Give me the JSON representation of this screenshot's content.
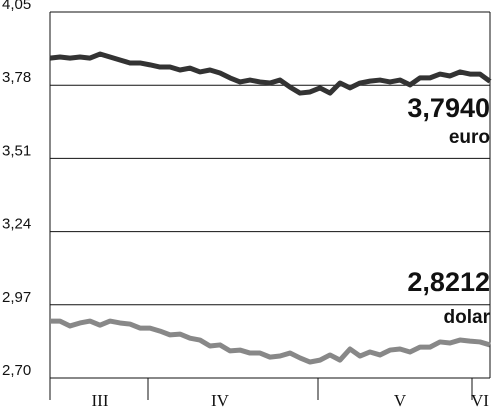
{
  "chart_data": {
    "type": "line",
    "categories": [
      null,
      null,
      null,
      null,
      null,
      "III",
      null,
      null,
      null,
      null,
      null,
      null,
      null,
      null,
      null,
      null,
      null,
      "IV",
      null,
      null,
      null,
      null,
      null,
      null,
      null,
      null,
      null,
      null,
      null,
      null,
      null,
      null,
      null,
      null,
      null,
      "V",
      null,
      null,
      null,
      null,
      null,
      null,
      null,
      "VI",
      null
    ],
    "series": [
      {
        "name": "euro",
        "color": "#333333",
        "values": [
          3.88,
          3.884,
          3.88,
          3.884,
          3.88,
          3.895,
          3.884,
          3.873,
          3.862,
          3.862,
          3.855,
          3.847,
          3.847,
          3.836,
          3.843,
          3.829,
          3.836,
          3.825,
          3.807,
          3.792,
          3.799,
          3.792,
          3.788,
          3.799,
          3.773,
          3.751,
          3.755,
          3.77,
          3.751,
          3.788,
          3.77,
          3.788,
          3.795,
          3.799,
          3.792,
          3.799,
          3.781,
          3.807,
          3.807,
          3.821,
          3.814,
          3.829,
          3.821,
          3.821,
          3.794
        ]
      },
      {
        "name": "dolar",
        "color": "#888888",
        "values": [
          2.91,
          2.91,
          2.892,
          2.903,
          2.91,
          2.895,
          2.91,
          2.903,
          2.899,
          2.884,
          2.884,
          2.873,
          2.859,
          2.862,
          2.847,
          2.84,
          2.818,
          2.822,
          2.8,
          2.803,
          2.792,
          2.792,
          2.777,
          2.781,
          2.792,
          2.774,
          2.759,
          2.766,
          2.785,
          2.766,
          2.807,
          2.781,
          2.796,
          2.785,
          2.803,
          2.807,
          2.796,
          2.814,
          2.814,
          2.833,
          2.829,
          2.84,
          2.836,
          2.833,
          2.822
        ]
      }
    ],
    "annotations": [
      "3,7940",
      "2,8212"
    ],
    "ylim": [
      2.7,
      4.05
    ],
    "yticks": [
      {
        "value": 2.7,
        "label": "2,70"
      },
      {
        "value": 2.97,
        "label": "2,97"
      },
      {
        "value": 3.24,
        "label": "3,24"
      },
      {
        "value": 3.51,
        "label": "3,51"
      },
      {
        "value": 3.78,
        "label": "3,78"
      },
      {
        "value": 4.05,
        "label": "4,05"
      }
    ],
    "grid": true
  }
}
